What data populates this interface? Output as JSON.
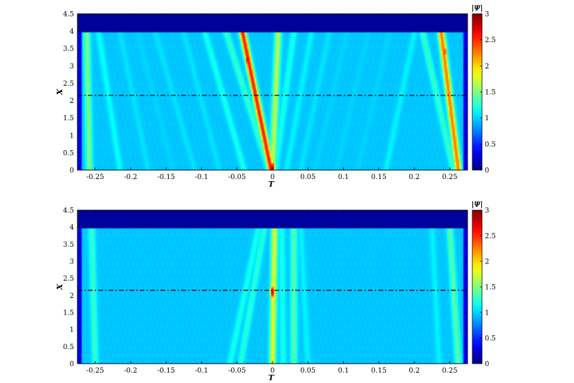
{
  "chart_data": [
    {
      "type": "heatmap",
      "xlabel": "T",
      "ylabel": "X",
      "xlim": [
        -0.275,
        0.275
      ],
      "ylim": [
        0,
        4.5
      ],
      "x_ticks": [
        -0.25,
        -0.2,
        -0.15,
        -0.1,
        -0.05,
        0,
        0.05,
        0.1,
        0.15,
        0.2,
        0.25
      ],
      "x_tick_labels": [
        "-0.25",
        "-0.2",
        "-0.15",
        "-0.1",
        "-0.05",
        "0",
        "0.05",
        "0.1",
        "0.15",
        "0.2",
        "0.25"
      ],
      "y_ticks": [
        0,
        0.5,
        1,
        1.5,
        2,
        2.5,
        3,
        3.5,
        4,
        4.5
      ],
      "y_tick_labels": [
        "0",
        "0.5",
        "1",
        "1.5",
        "2",
        "2.5",
        "3",
        "3.5",
        "4",
        "4.5"
      ],
      "colorbar": {
        "title": "|Ψ|",
        "range": [
          0,
          3
        ],
        "ticks": [
          0,
          0.5,
          1,
          1.5,
          2,
          2.5,
          3
        ],
        "tick_labels": [
          "0",
          "0.5",
          "1",
          "1.5",
          "2",
          "2.5",
          "3"
        ],
        "colormap": "jet"
      },
      "reference_line": {
        "y": 2.15,
        "style": "dash-dot",
        "color": "#000000"
      },
      "background_level": 0.95,
      "field_top": 3.95,
      "filaments": [
        {
          "t0": -0.258,
          "t1": -0.262,
          "peak": 1.5
        },
        {
          "t0": -0.215,
          "t1": -0.245,
          "peak": 1.15
        },
        {
          "t0": -0.175,
          "t1": -0.215,
          "peak": 1.05
        },
        {
          "t0": -0.14,
          "t1": -0.19,
          "peak": 1.0
        },
        {
          "t0": -0.11,
          "t1": -0.165,
          "peak": 1.05
        },
        {
          "t0": -0.075,
          "t1": -0.125,
          "peak": 1.05
        },
        {
          "t0": -0.04,
          "t1": -0.095,
          "peak": 1.2
        },
        {
          "t0": -0.005,
          "t1": -0.065,
          "peak": 1.3
        },
        {
          "t0": -0.002,
          "t1": -0.042,
          "peak": 2.6
        },
        {
          "t0": 0.0,
          "t1": 0.008,
          "peak": 1.7
        },
        {
          "t0": 0.004,
          "t1": 0.03,
          "peak": 1.2
        },
        {
          "t0": 0.02,
          "t1": 0.055,
          "peak": 1.1
        },
        {
          "t0": 0.04,
          "t1": 0.08,
          "peak": 1.05
        },
        {
          "t0": 0.06,
          "t1": 0.105,
          "peak": 1.0
        },
        {
          "t0": 0.09,
          "t1": 0.135,
          "peak": 1.0
        },
        {
          "t0": 0.12,
          "t1": 0.165,
          "peak": 1.0
        },
        {
          "t0": 0.16,
          "t1": 0.2,
          "peak": 1.1
        },
        {
          "t0": 0.255,
          "t1": 0.212,
          "peak": 1.3
        },
        {
          "t0": 0.262,
          "t1": 0.238,
          "peak": 2.3
        }
      ],
      "hotspots": [
        {
          "t": 0.0,
          "x": 0.05,
          "peak": 2.9
        },
        {
          "t": -0.035,
          "x": 3.2,
          "peak": 2.8
        },
        {
          "t": 0.243,
          "x": 3.4,
          "peak": 2.5
        }
      ]
    },
    {
      "type": "heatmap",
      "xlabel": "T",
      "ylabel": "X",
      "xlim": [
        -0.275,
        0.275
      ],
      "ylim": [
        0,
        4.5
      ],
      "x_ticks": [
        -0.25,
        -0.2,
        -0.15,
        -0.1,
        -0.05,
        0,
        0.05,
        0.1,
        0.15,
        0.2,
        0.25
      ],
      "x_tick_labels": [
        "-0.25",
        "-0.2",
        "-0.15",
        "-0.1",
        "-0.05",
        "0",
        "0.05",
        "0.1",
        "0.15",
        "0.2",
        "0.25"
      ],
      "y_ticks": [
        0,
        0.5,
        1,
        1.5,
        2,
        2.5,
        3,
        3.5,
        4,
        4.5
      ],
      "y_tick_labels": [
        "0",
        "0.5",
        "1",
        "1.5",
        "2",
        "2.5",
        "3",
        "3.5",
        "4",
        "4.5"
      ],
      "colorbar": {
        "title": "|Ψ|",
        "range": [
          0,
          3
        ],
        "ticks": [
          0,
          0.5,
          1,
          1.5,
          2,
          2.5,
          3
        ],
        "tick_labels": [
          "0",
          "0.5",
          "1",
          "1.5",
          "2",
          "2.5",
          "3"
        ],
        "colormap": "jet"
      },
      "reference_line": {
        "y": 2.15,
        "style": "dash-dot",
        "color": "#000000"
      },
      "background_level": 0.95,
      "field_top": 3.95,
      "filaments": [
        {
          "t0": -0.25,
          "t1": -0.255,
          "peak": 1.3
        },
        {
          "t0": -0.06,
          "t1": -0.02,
          "peak": 1.2
        },
        {
          "t0": -0.045,
          "t1": -0.012,
          "peak": 1.25
        },
        {
          "t0": 0.03,
          "t1": 0.03,
          "peak": 1.4
        },
        {
          "t0": 0.015,
          "t1": 0.013,
          "peak": 1.2
        },
        {
          "t0": 0.0,
          "t1": 0.003,
          "peak": 1.8
        },
        {
          "t0": 0.05,
          "t1": 0.04,
          "peak": 1.1
        },
        {
          "t0": 0.235,
          "t1": 0.225,
          "peak": 1.1
        },
        {
          "t0": 0.262,
          "t1": 0.25,
          "peak": 1.4
        }
      ],
      "hotspots": [
        {
          "t": 0.0,
          "x": 2.1,
          "peak": 2.8
        }
      ]
    }
  ]
}
